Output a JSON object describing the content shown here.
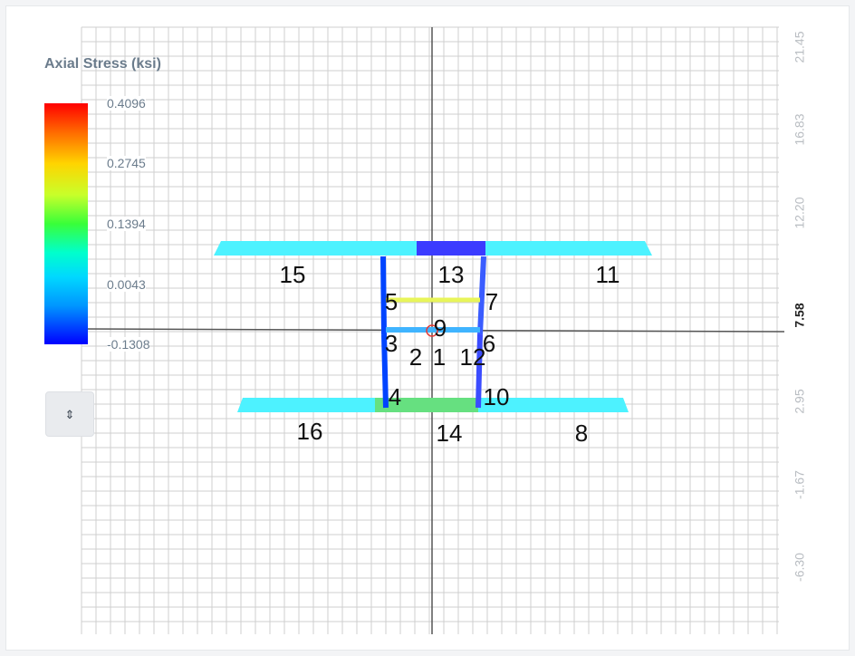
{
  "legend": {
    "title": "Axial Stress (ksi)",
    "ticks": [
      "0.4096",
      "0.2745",
      "0.1394",
      "0.0043",
      "-0.1308"
    ]
  },
  "axis": {
    "y_ticks": [
      "21.45",
      "16.83",
      "12.20",
      "7.58",
      "2.95",
      "-1.67",
      "-6.30"
    ],
    "active_tick": "7.58"
  },
  "members": [
    {
      "id": "1",
      "color": "#0000ff"
    },
    {
      "id": "2",
      "color": "#0000ff"
    },
    {
      "id": "3",
      "color": "#0044ff"
    },
    {
      "id": "4",
      "color": "#0044ff"
    },
    {
      "id": "5",
      "color": "#e8f55a"
    },
    {
      "id": "6",
      "color": "#3a5cff"
    },
    {
      "id": "7",
      "color": "#54d86a"
    },
    {
      "id": "8",
      "color": "#4df2ff"
    },
    {
      "id": "9",
      "color": "#3fb4ff"
    },
    {
      "id": "10",
      "color": "#3b4cff"
    },
    {
      "id": "11",
      "color": "#4df2ff"
    },
    {
      "id": "12",
      "color": "#1a8cff"
    },
    {
      "id": "13",
      "color": "#3b3bff"
    },
    {
      "id": "14",
      "color": "#66e080"
    },
    {
      "id": "15",
      "color": "#4df2ff"
    },
    {
      "id": "16",
      "color": "#4df2ff"
    }
  ],
  "controls": {
    "toggle_icon": "updown-arrows-icon",
    "toggle_glyph": "⇕"
  },
  "colors": {
    "grid": "#cfcfcf",
    "axis": "#555555",
    "node_marker": "#e53935",
    "legend_text": "#6b7c8c"
  }
}
